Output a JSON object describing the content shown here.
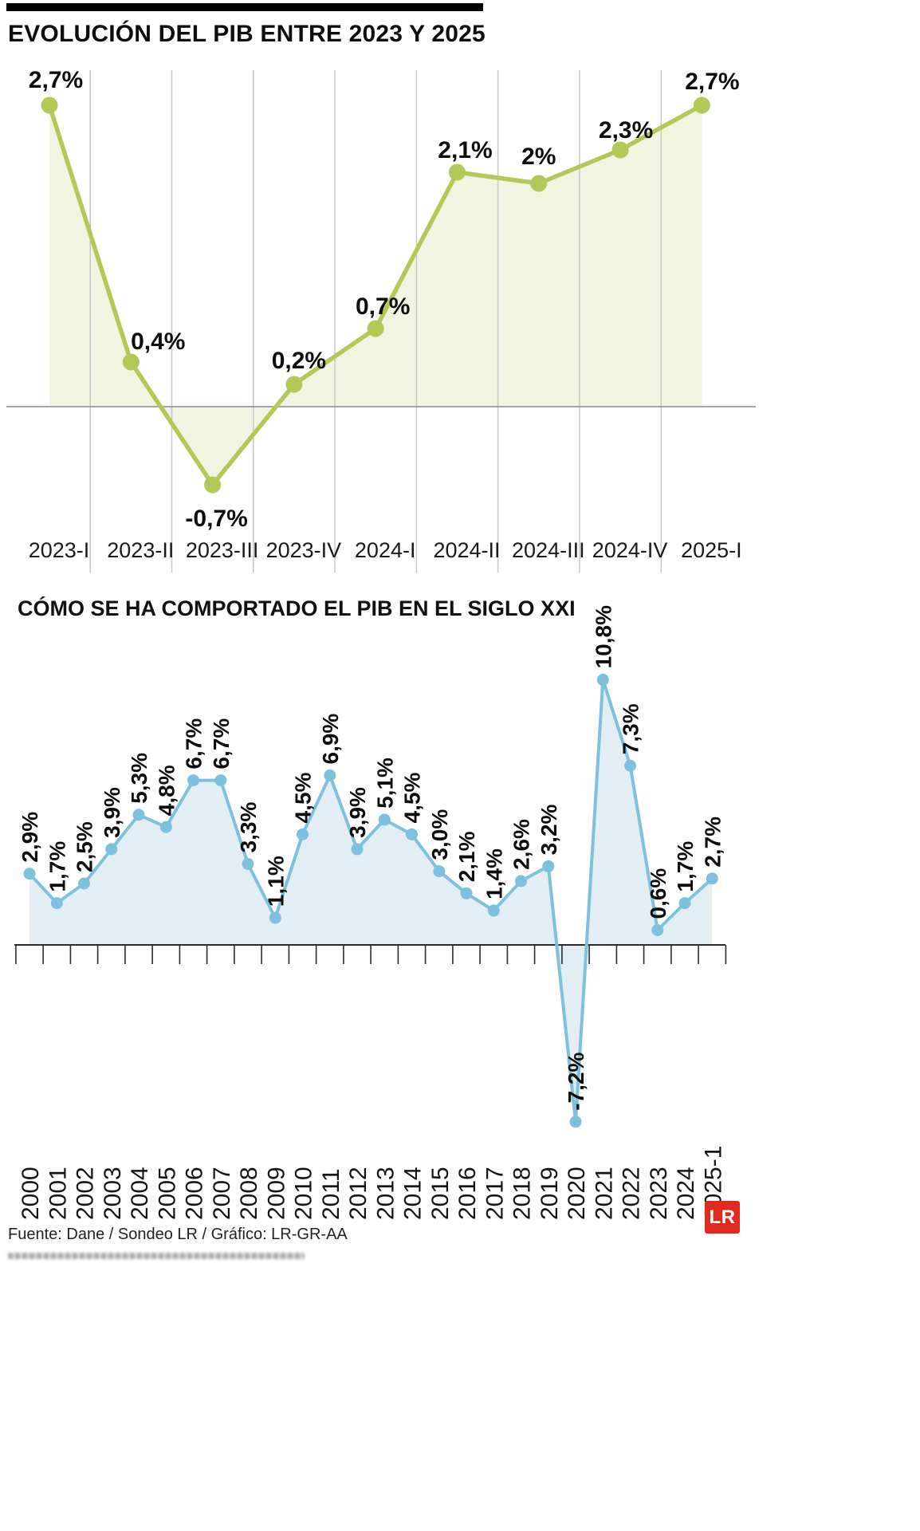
{
  "page": {
    "background": "#ffffff"
  },
  "chart_data": [
    {
      "type": "line",
      "title": "EVOLUCIÓN DEL PIB ENTRE 2023 Y 2025",
      "categories": [
        "2023-I",
        "2023-II",
        "2023-III",
        "2023-IV",
        "2024-I",
        "2024-II",
        "2024-III",
        "2024-IV",
        "2025-I"
      ],
      "values": [
        2.7,
        0.4,
        -0.7,
        0.2,
        0.7,
        2.1,
        2.0,
        2.3,
        2.7
      ],
      "labels": [
        "2,7%",
        "0,4%",
        "-0,7%",
        "0,2%",
        "0,7%",
        "2,1%",
        "2%",
        "2,3%",
        "2,7%"
      ],
      "baseline": 0,
      "area": true,
      "grid": "vertical",
      "legend": "none",
      "line_color": "#b2c957",
      "area_color": "#eef3dd",
      "axis_color": "#8a8a8a",
      "grid_color": "#c8c8c8"
    },
    {
      "type": "line",
      "title": "CÓMO SE HA COMPORTADO EL PIB EN EL SIGLO XXI",
      "categories": [
        "2000",
        "2001",
        "2002",
        "2003",
        "2004",
        "2005",
        "2006",
        "2007",
        "2008",
        "2009",
        "2010",
        "2011",
        "2012",
        "2013",
        "2014",
        "2015",
        "2016",
        "2017",
        "2018",
        "2019",
        "2020",
        "2021",
        "2022",
        "2023",
        "2024",
        "2025-1"
      ],
      "values": [
        2.9,
        1.7,
        2.5,
        3.9,
        5.3,
        4.8,
        6.7,
        6.7,
        3.3,
        1.1,
        4.5,
        6.9,
        3.9,
        5.1,
        4.5,
        3.0,
        2.1,
        1.4,
        2.6,
        3.2,
        -7.2,
        10.8,
        7.3,
        0.6,
        1.7,
        2.7
      ],
      "labels": [
        "2,9%",
        "1,7%",
        "2,5%",
        "3,9%",
        "5,3%",
        "4,8%",
        "6,7%",
        "6,7%",
        "3,3%",
        "1,1%",
        "4,5%",
        "6,9%",
        "3,9%",
        "5,1%",
        "4,5%",
        "3,0%",
        "2,1%",
        "1,4%",
        "2,6%",
        "3,2%",
        "-7,2%",
        "10,8%",
        "7,3%",
        "0,6%",
        "1,7%",
        "2,7%"
      ],
      "baseline": 0,
      "area": true,
      "grid": "none",
      "legend": "none",
      "line_color": "#7ec1de",
      "area_color": "#e0edf3",
      "axis_color": "#2b2b2b"
    }
  ],
  "footer": {
    "source": "Fuente: Dane / Sondeo LR / Gráfico: LR-GR-AA",
    "logo_text": "LR",
    "logo_color": "#df2b1f"
  }
}
